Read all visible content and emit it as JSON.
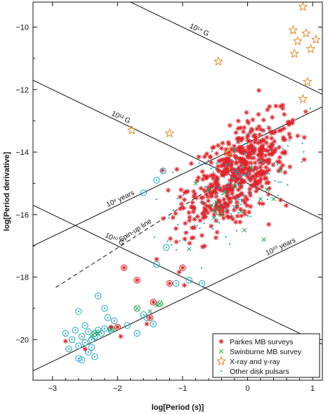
{
  "chart_data": {
    "type": "scatter",
    "title": "",
    "xlabel": "log[Period (s)]",
    "ylabel": "log[Period derivative]",
    "xlim": [
      -3.3,
      1.15
    ],
    "ylim": [
      -21.3,
      -9.2
    ],
    "xticks": [
      -3,
      -2,
      -1,
      0,
      1
    ],
    "yticks": [
      -20,
      -18,
      -16,
      -14,
      -12,
      -10
    ],
    "grid": false,
    "legend_position": "bottom-right",
    "series": [
      {
        "name": "Parkes MB surveys",
        "marker": "asterisk",
        "color": "#e0242a",
        "cluster": {
          "center": [
            -0.15,
            -14.7
          ],
          "spread": [
            0.45,
            1.0
          ],
          "n": 560
        }
      },
      {
        "name": "Swinburne MB survey",
        "marker": "x",
        "color": "#1fa34a",
        "points": [
          [
            -0.55,
            -15.7
          ],
          [
            -0.5,
            -15.9
          ],
          [
            -0.48,
            -15.6
          ],
          [
            -0.4,
            -16.0
          ],
          [
            -0.6,
            -15.2
          ],
          [
            -0.2,
            -15.1
          ],
          [
            0.05,
            -14.5
          ],
          [
            0.3,
            -15.2
          ],
          [
            0.5,
            -14.6
          ],
          [
            -0.05,
            -16.5
          ],
          [
            0.25,
            -16.8
          ],
          [
            -0.8,
            -15.0
          ],
          [
            -0.45,
            -15.8
          ],
          [
            -0.52,
            -16.1
          ],
          [
            -0.35,
            -15.3
          ],
          [
            0.2,
            -15.5
          ],
          [
            -0.9,
            -17.1
          ],
          [
            -1.5,
            -19.1
          ],
          [
            -2.4,
            -19.9
          ],
          [
            -2.0,
            -19.6
          ],
          [
            -1.4,
            -18.9
          ],
          [
            -2.3,
            -19.8
          ],
          [
            -0.1,
            -15.9
          ],
          [
            0.4,
            -15.5
          ]
        ]
      },
      {
        "name": "X-ray and γ-ray",
        "marker": "star",
        "color": "#e08a1e",
        "points": [
          [
            0.85,
            -9.35
          ],
          [
            0.7,
            -10.1
          ],
          [
            0.9,
            -10.2
          ],
          [
            0.77,
            -10.45
          ],
          [
            1.05,
            -10.4
          ],
          [
            0.97,
            -10.7
          ],
          [
            0.72,
            -10.85
          ],
          [
            0.92,
            -11.75
          ],
          [
            0.85,
            -12.3
          ],
          [
            -0.45,
            -11.1
          ],
          [
            -1.78,
            -13.3
          ],
          [
            -1.2,
            -13.4
          ],
          [
            -0.3,
            -14.0
          ]
        ]
      },
      {
        "name": "Other disk pulsars",
        "marker": "dot",
        "color": "#1aa6c2",
        "cluster": {
          "center": [
            -0.2,
            -15.0
          ],
          "spread": [
            0.5,
            1.1
          ],
          "n": 170
        }
      },
      {
        "name": "",
        "marker": "circle-dot",
        "color": "#1aa6c2",
        "points": [
          [
            -2.75,
            -20.3
          ],
          [
            -2.6,
            -20.6
          ],
          [
            -2.55,
            -20.65
          ],
          [
            -2.45,
            -20.4
          ],
          [
            -2.5,
            -20.1
          ],
          [
            -2.4,
            -20.0
          ],
          [
            -2.35,
            -19.9
          ],
          [
            -2.45,
            -19.75
          ],
          [
            -2.55,
            -19.9
          ],
          [
            -2.3,
            -19.7
          ],
          [
            -2.25,
            -19.8
          ],
          [
            -2.6,
            -20.2
          ],
          [
            -2.4,
            -20.25
          ],
          [
            -2.65,
            -19.7
          ],
          [
            -2.2,
            -19.65
          ],
          [
            -2.1,
            -19.7
          ],
          [
            -2.05,
            -19.4
          ],
          [
            -2.15,
            -19.3
          ],
          [
            -2.8,
            -19.8
          ],
          [
            -2.6,
            -19.1
          ],
          [
            -2.2,
            -19.0
          ],
          [
            -2.3,
            -18.6
          ],
          [
            -1.85,
            -19.55
          ],
          [
            -1.7,
            -19.8
          ],
          [
            -1.6,
            -19.2
          ],
          [
            -1.55,
            -19.3
          ],
          [
            -1.45,
            -19.5
          ],
          [
            -1.4,
            -17.6
          ],
          [
            -1.1,
            -18.2
          ],
          [
            -0.9,
            -18.1
          ],
          [
            -0.7,
            -18.2
          ],
          [
            -1.25,
            -17.05
          ],
          [
            -1.6,
            -15.3
          ],
          [
            -1.4,
            -14.9
          ],
          [
            -1.3,
            -14.6
          ],
          [
            -2.35,
            -20.55
          ],
          [
            -2.7,
            -20.0
          ],
          [
            -2.5,
            -19.55
          ]
        ]
      },
      {
        "name": "",
        "marker": "circle-asterisk",
        "color": "#e0242a",
        "points": [
          [
            -2.0,
            -19.6
          ],
          [
            -1.9,
            -17.7
          ],
          [
            -1.7,
            -18.1
          ],
          [
            -1.45,
            -18.8
          ],
          [
            -1.2,
            -18.2
          ],
          [
            -1.0,
            -17.7
          ],
          [
            -1.5,
            -19.3
          ]
        ]
      },
      {
        "name": "",
        "marker": "circle-x",
        "color": "#1fa34a",
        "points": [
          [
            -2.1,
            -19.65
          ],
          [
            -1.7,
            -19.0
          ],
          [
            -1.35,
            -18.85
          ],
          [
            -2.35,
            -19.8
          ]
        ]
      },
      {
        "name": "",
        "marker": "asterisk",
        "color": "#e0242a",
        "points": [
          [
            -2.8,
            -20.05
          ],
          [
            -2.5,
            -20.3
          ],
          [
            -2.1,
            -19.6
          ],
          [
            -1.95,
            -19.9
          ],
          [
            -1.55,
            -19.5
          ]
        ]
      }
    ],
    "lines": [
      {
        "label": "10¹⁴ G",
        "kind": "field",
        "log_b": 14
      },
      {
        "label": "10¹² G",
        "kind": "field",
        "log_b": 12
      },
      {
        "label": "10¹⁰ G",
        "kind": "field",
        "log_b": 10
      },
      {
        "label": "10⁶ years",
        "kind": "age",
        "log_age_yr": 6
      },
      {
        "label": "10¹⁰ years",
        "kind": "age",
        "log_age_yr": 10
      },
      {
        "label": "Spin-up line",
        "kind": "spin-up",
        "dashed": true
      }
    ],
    "legend": [
      {
        "label": "Parkes MB surveys",
        "marker": "asterisk",
        "color": "#e0242a"
      },
      {
        "label": "Swinburne MB survey",
        "marker": "x",
        "color": "#1fa34a"
      },
      {
        "label": "X-ray and γ-ray",
        "marker": "star",
        "color": "#e08a1e"
      },
      {
        "label": "Other disk pulsars",
        "marker": "dot",
        "color": "#1aa6c2"
      }
    ]
  }
}
